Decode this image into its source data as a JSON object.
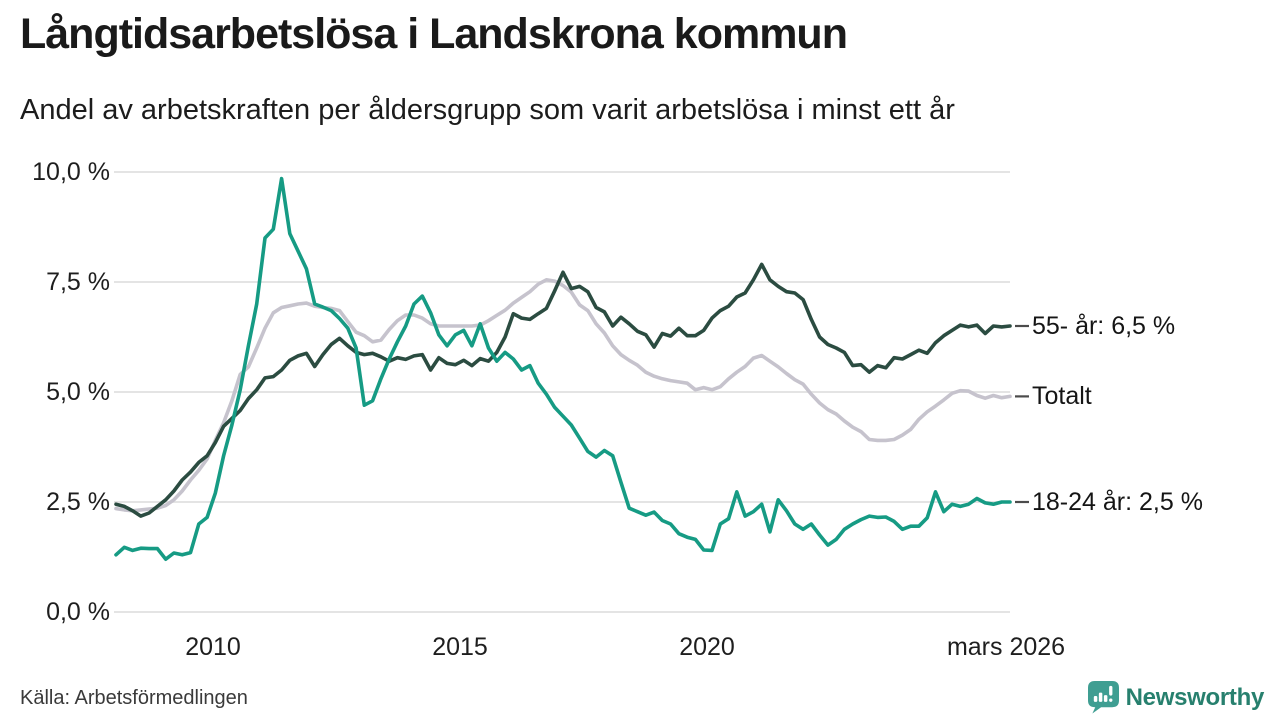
{
  "header": {
    "title": "Långtidsarbetslösa i Landskrona kommun",
    "subtitle": "Andel av arbetskraften per åldersgrupp som varit arbetslösa i minst ett år"
  },
  "footer": {
    "source": "Källa: Arbetsförmedlingen",
    "brand": "Newsworthy"
  },
  "colors": {
    "series_55": "#2b4c41",
    "series_total": "#c6c3cd",
    "series_1824": "#169b84",
    "grid": "#e4e4e4",
    "tick_dash": "#4b4b4b",
    "logo_teal": "#3f9e92",
    "logo_text": "#27806e"
  },
  "chart_data": {
    "type": "line",
    "title": "Långtidsarbetslösa i Landskrona kommun",
    "subtitle": "Andel av arbetskraften per åldersgrupp som varit arbetslösa i minst ett år",
    "unit": "%",
    "x_start": 2008.17,
    "x_end": 2026.17,
    "x_end_label_text": "mars 2026",
    "ylim": [
      0,
      10
    ],
    "grid": true,
    "legend_position": "right-end-labels",
    "yticks": [
      10,
      7.5,
      5,
      2.5,
      0
    ],
    "ytick_labels": [
      "10,0 %",
      "7,5 %",
      "5,0 %",
      "2,5 %",
      "0,0 %"
    ],
    "xticks": [
      2010,
      2015,
      2020,
      2026.17
    ],
    "xtick_labels": [
      "2010",
      "2015",
      "2020",
      "mars 2026"
    ],
    "z_order": [
      1,
      0,
      2
    ],
    "series": [
      {
        "name": "55- år",
        "end_label": "55- år: 6,5 %",
        "end_value": 6.5,
        "color": "#2b4c41",
        "values": [
          2.45,
          2.4,
          2.3,
          2.18,
          2.25,
          2.4,
          2.55,
          2.75,
          3.0,
          3.18,
          3.4,
          3.55,
          3.85,
          4.22,
          4.4,
          4.58,
          4.85,
          5.05,
          5.32,
          5.35,
          5.5,
          5.72,
          5.82,
          5.88,
          5.58,
          5.85,
          6.08,
          6.22,
          6.05,
          5.9,
          5.85,
          5.88,
          5.8,
          5.7,
          5.78,
          5.74,
          5.82,
          5.85,
          5.5,
          5.78,
          5.65,
          5.62,
          5.72,
          5.6,
          5.76,
          5.7,
          5.9,
          6.25,
          6.78,
          6.68,
          6.65,
          6.78,
          6.9,
          7.3,
          7.72,
          7.35,
          7.4,
          7.28,
          6.92,
          6.82,
          6.5,
          6.7,
          6.55,
          6.38,
          6.3,
          6.02,
          6.33,
          6.27,
          6.45,
          6.28,
          6.28,
          6.4,
          6.68,
          6.85,
          6.95,
          7.16,
          7.25,
          7.55,
          7.9,
          7.55,
          7.4,
          7.28,
          7.25,
          7.1,
          6.65,
          6.25,
          6.08,
          6.0,
          5.9,
          5.6,
          5.62,
          5.45,
          5.6,
          5.55,
          5.78,
          5.75,
          5.85,
          5.95,
          5.88,
          6.12,
          6.28,
          6.4,
          6.52,
          6.48,
          6.52,
          6.33,
          6.5,
          6.48,
          6.5
        ]
      },
      {
        "name": "Totalt",
        "end_label": "Totalt",
        "end_value": 4.9,
        "color": "#c6c3cd",
        "values": [
          2.35,
          2.32,
          2.3,
          2.32,
          2.34,
          2.36,
          2.42,
          2.55,
          2.75,
          3.0,
          3.22,
          3.48,
          3.9,
          4.3,
          4.8,
          5.4,
          5.57,
          6.0,
          6.45,
          6.8,
          6.92,
          6.96,
          7.0,
          7.02,
          6.95,
          6.92,
          6.9,
          6.85,
          6.6,
          6.36,
          6.28,
          6.14,
          6.18,
          6.42,
          6.62,
          6.75,
          6.75,
          6.68,
          6.55,
          6.5,
          6.5,
          6.5,
          6.5,
          6.5,
          6.52,
          6.62,
          6.74,
          6.86,
          7.02,
          7.15,
          7.28,
          7.45,
          7.55,
          7.52,
          7.42,
          7.27,
          6.98,
          6.85,
          6.55,
          6.34,
          6.05,
          5.85,
          5.72,
          5.61,
          5.45,
          5.36,
          5.3,
          5.26,
          5.23,
          5.2,
          5.05,
          5.1,
          5.05,
          5.12,
          5.3,
          5.45,
          5.58,
          5.77,
          5.83,
          5.7,
          5.57,
          5.42,
          5.28,
          5.18,
          4.95,
          4.75,
          4.6,
          4.5,
          4.34,
          4.2,
          4.1,
          3.92,
          3.9,
          3.9,
          3.92,
          4.02,
          4.15,
          4.38,
          4.55,
          4.68,
          4.82,
          4.97,
          5.03,
          5.02,
          4.92,
          4.86,
          4.92,
          4.87,
          4.9
        ]
      },
      {
        "name": "18-24 år",
        "end_label": "18-24 år: 2,5 %",
        "end_value": 2.5,
        "color": "#169b84",
        "values": [
          1.3,
          1.47,
          1.4,
          1.45,
          1.44,
          1.44,
          1.2,
          1.34,
          1.3,
          1.35,
          2.0,
          2.15,
          2.7,
          3.55,
          4.25,
          5.05,
          6.05,
          7.0,
          8.5,
          8.7,
          9.85,
          8.6,
          8.2,
          7.8,
          7.0,
          6.93,
          6.85,
          6.67,
          6.45,
          6.0,
          4.7,
          4.8,
          5.3,
          5.75,
          6.14,
          6.5,
          7.0,
          7.18,
          6.8,
          6.3,
          6.05,
          6.3,
          6.4,
          6.05,
          6.55,
          6.0,
          5.7,
          5.9,
          5.75,
          5.5,
          5.6,
          5.2,
          4.95,
          4.65,
          4.45,
          4.25,
          3.95,
          3.65,
          3.52,
          3.67,
          3.55,
          2.95,
          2.36,
          2.28,
          2.2,
          2.27,
          2.08,
          2.0,
          1.78,
          1.7,
          1.65,
          1.41,
          1.4,
          2.0,
          2.12,
          2.73,
          2.18,
          2.28,
          2.45,
          1.82,
          2.55,
          2.3,
          2.0,
          1.88,
          2.0,
          1.75,
          1.52,
          1.65,
          1.88,
          2.0,
          2.1,
          2.18,
          2.15,
          2.16,
          2.06,
          1.88,
          1.95,
          1.95,
          2.14,
          2.73,
          2.28,
          2.45,
          2.4,
          2.45,
          2.58,
          2.48,
          2.45,
          2.5,
          2.5
        ]
      }
    ]
  }
}
